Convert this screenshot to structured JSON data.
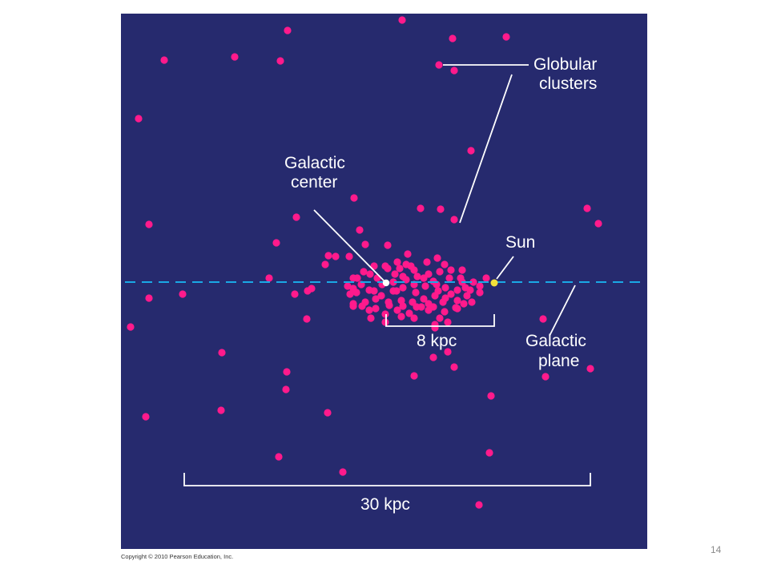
{
  "labels": {
    "globular_line1": "Globular",
    "globular_line2": "clusters",
    "center_line1": "Galactic",
    "center_line2": "center",
    "sun": "Sun",
    "plane_line1": "Galactic",
    "plane_line2": "plane",
    "scale_small": "8 kpc",
    "scale_large": "30 kpc"
  },
  "footer": {
    "copyright": "Copyright © 2010 Pearson Education, Inc.",
    "slide_number": "14"
  },
  "colors": {
    "background": "#262a6e",
    "cluster": "#ff1a8c",
    "plane": "#1aa9e6",
    "sun": "#f2e13a",
    "galactic_center": "#ffffff",
    "lines": "#ffffff"
  },
  "scale": {
    "small_kpc": 8,
    "large_kpc": 30
  }
}
